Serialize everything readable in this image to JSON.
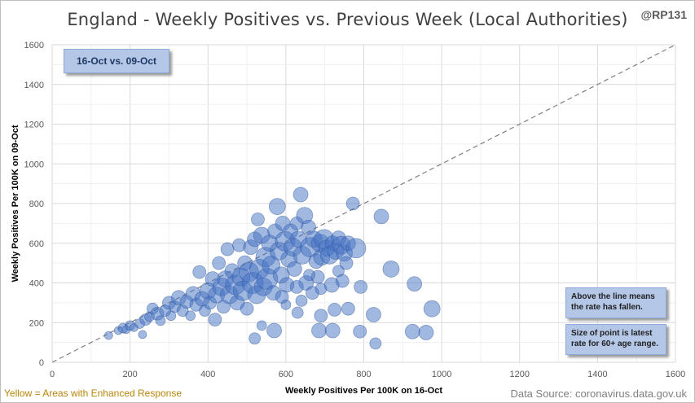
{
  "title": "England - Weekly Positives vs. Previous Week (Local Authorities)",
  "handle": "@RP131",
  "date_label": "16-Oct vs. 09-Oct",
  "notes": {
    "above_line": "Above the line means the rate has fallen.",
    "point_size": "Size of point is latest rate for 60+ age range."
  },
  "footer": {
    "left": "Yellow = Areas with Enhanced Response",
    "right": "Data Source: coronavirus.data.gov.uk"
  },
  "colors": {
    "point": "#4472c4",
    "point_dark": "#2f5597",
    "gridline": "#d9d9d9",
    "reference_line": "#808080"
  },
  "chart_data": {
    "type": "scatter",
    "title": "England - Weekly Positives vs. Previous Week (Local Authorities)",
    "xlabel": "Weekly Positives Per 100K on 16-Oct",
    "ylabel": "Weekly Positives Per 100K on 09-Oct",
    "xlim": [
      0,
      1600
    ],
    "ylim": [
      0,
      1600
    ],
    "x_ticks": [
      0,
      200,
      400,
      600,
      800,
      1000,
      1200,
      1400,
      1600
    ],
    "y_ticks": [
      0,
      200,
      400,
      600,
      800,
      1000,
      1200,
      1400,
      1600
    ],
    "grid": true,
    "reference_line": "y = x",
    "size_meaning": "latest rate for 60+ age range",
    "points": [
      {
        "x": 145,
        "y": 135,
        "s": 5
      },
      {
        "x": 170,
        "y": 160,
        "s": 5
      },
      {
        "x": 182,
        "y": 172,
        "s": 6
      },
      {
        "x": 190,
        "y": 165,
        "s": 5
      },
      {
        "x": 200,
        "y": 185,
        "s": 6
      },
      {
        "x": 210,
        "y": 175,
        "s": 5
      },
      {
        "x": 225,
        "y": 195,
        "s": 6
      },
      {
        "x": 232,
        "y": 140,
        "s": 5
      },
      {
        "x": 240,
        "y": 215,
        "s": 7
      },
      {
        "x": 250,
        "y": 230,
        "s": 6
      },
      {
        "x": 258,
        "y": 270,
        "s": 7
      },
      {
        "x": 270,
        "y": 245,
        "s": 8
      },
      {
        "x": 278,
        "y": 210,
        "s": 6
      },
      {
        "x": 290,
        "y": 260,
        "s": 7
      },
      {
        "x": 300,
        "y": 300,
        "s": 8
      },
      {
        "x": 305,
        "y": 235,
        "s": 6
      },
      {
        "x": 315,
        "y": 280,
        "s": 7
      },
      {
        "x": 325,
        "y": 325,
        "s": 9
      },
      {
        "x": 335,
        "y": 260,
        "s": 7
      },
      {
        "x": 345,
        "y": 305,
        "s": 8
      },
      {
        "x": 355,
        "y": 235,
        "s": 6
      },
      {
        "x": 362,
        "y": 345,
        "s": 9
      },
      {
        "x": 370,
        "y": 290,
        "s": 8
      },
      {
        "x": 378,
        "y": 455,
        "s": 8
      },
      {
        "x": 385,
        "y": 320,
        "s": 9
      },
      {
        "x": 392,
        "y": 260,
        "s": 7
      },
      {
        "x": 400,
        "y": 360,
        "s": 10
      },
      {
        "x": 405,
        "y": 300,
        "s": 8
      },
      {
        "x": 412,
        "y": 420,
        "s": 9
      },
      {
        "x": 418,
        "y": 215,
        "s": 8
      },
      {
        "x": 422,
        "y": 340,
        "s": 10
      },
      {
        "x": 428,
        "y": 500,
        "s": 8
      },
      {
        "x": 435,
        "y": 380,
        "s": 11
      },
      {
        "x": 440,
        "y": 280,
        "s": 8
      },
      {
        "x": 445,
        "y": 420,
        "s": 10
      },
      {
        "x": 450,
        "y": 570,
        "s": 8
      },
      {
        "x": 455,
        "y": 340,
        "s": 11
      },
      {
        "x": 462,
        "y": 460,
        "s": 9
      },
      {
        "x": 470,
        "y": 390,
        "s": 12
      },
      {
        "x": 475,
        "y": 300,
        "s": 9
      },
      {
        "x": 480,
        "y": 590,
        "s": 8
      },
      {
        "x": 485,
        "y": 430,
        "s": 11
      },
      {
        "x": 490,
        "y": 360,
        "s": 12
      },
      {
        "x": 495,
        "y": 500,
        "s": 9
      },
      {
        "x": 500,
        "y": 270,
        "s": 8
      },
      {
        "x": 505,
        "y": 455,
        "s": 12
      },
      {
        "x": 510,
        "y": 580,
        "s": 9
      },
      {
        "x": 515,
        "y": 400,
        "s": 13
      },
      {
        "x": 520,
        "y": 620,
        "s": 9
      },
      {
        "x": 525,
        "y": 340,
        "s": 11
      },
      {
        "x": 528,
        "y": 720,
        "s": 8
      },
      {
        "x": 532,
        "y": 470,
        "s": 12
      },
      {
        "x": 538,
        "y": 640,
        "s": 10
      },
      {
        "x": 542,
        "y": 380,
        "s": 11
      },
      {
        "x": 548,
        "y": 530,
        "s": 12
      },
      {
        "x": 552,
        "y": 420,
        "s": 13
      },
      {
        "x": 558,
        "y": 600,
        "s": 10
      },
      {
        "x": 562,
        "y": 490,
        "s": 11
      },
      {
        "x": 568,
        "y": 350,
        "s": 9
      },
      {
        "x": 572,
        "y": 660,
        "s": 9
      },
      {
        "x": 578,
        "y": 785,
        "s": 10
      },
      {
        "x": 582,
        "y": 560,
        "s": 11
      },
      {
        "x": 588,
        "y": 440,
        "s": 10
      },
      {
        "x": 592,
        "y": 700,
        "s": 9
      },
      {
        "x": 598,
        "y": 610,
        "s": 12
      },
      {
        "x": 602,
        "y": 390,
        "s": 9
      },
      {
        "x": 608,
        "y": 520,
        "s": 10
      },
      {
        "x": 612,
        "y": 660,
        "s": 9
      },
      {
        "x": 618,
        "y": 580,
        "s": 11
      },
      {
        "x": 622,
        "y": 470,
        "s": 9
      },
      {
        "x": 628,
        "y": 700,
        "s": 8
      },
      {
        "x": 632,
        "y": 620,
        "s": 10
      },
      {
        "x": 638,
        "y": 845,
        "s": 9
      },
      {
        "x": 642,
        "y": 540,
        "s": 11
      },
      {
        "x": 648,
        "y": 740,
        "s": 10
      },
      {
        "x": 652,
        "y": 400,
        "s": 9
      },
      {
        "x": 658,
        "y": 680,
        "s": 9
      },
      {
        "x": 662,
        "y": 580,
        "s": 12
      },
      {
        "x": 668,
        "y": 350,
        "s": 8
      },
      {
        "x": 672,
        "y": 620,
        "s": 10
      },
      {
        "x": 678,
        "y": 510,
        "s": 9
      },
      {
        "x": 682,
        "y": 430,
        "s": 8
      },
      {
        "x": 688,
        "y": 600,
        "s": 11
      },
      {
        "x": 692,
        "y": 530,
        "s": 10
      },
      {
        "x": 698,
        "y": 620,
        "s": 12
      },
      {
        "x": 705,
        "y": 575,
        "s": 10
      },
      {
        "x": 712,
        "y": 540,
        "s": 11
      },
      {
        "x": 720,
        "y": 600,
        "s": 9
      },
      {
        "x": 728,
        "y": 560,
        "s": 10
      },
      {
        "x": 735,
        "y": 625,
        "s": 9
      },
      {
        "x": 742,
        "y": 590,
        "s": 11
      },
      {
        "x": 750,
        "y": 550,
        "s": 10
      },
      {
        "x": 760,
        "y": 600,
        "s": 9
      },
      {
        "x": 772,
        "y": 800,
        "s": 8
      },
      {
        "x": 780,
        "y": 575,
        "s": 12
      },
      {
        "x": 792,
        "y": 380,
        "s": 8
      },
      {
        "x": 845,
        "y": 735,
        "s": 9
      },
      {
        "x": 870,
        "y": 470,
        "s": 10
      },
      {
        "x": 930,
        "y": 395,
        "s": 9
      },
      {
        "x": 590,
        "y": 330,
        "s": 8
      },
      {
        "x": 600,
        "y": 290,
        "s": 6
      },
      {
        "x": 628,
        "y": 380,
        "s": 8
      },
      {
        "x": 640,
        "y": 310,
        "s": 7
      },
      {
        "x": 660,
        "y": 440,
        "s": 7
      },
      {
        "x": 690,
        "y": 370,
        "s": 7
      },
      {
        "x": 718,
        "y": 390,
        "s": 9
      },
      {
        "x": 735,
        "y": 460,
        "s": 7
      },
      {
        "x": 745,
        "y": 410,
        "s": 8
      },
      {
        "x": 755,
        "y": 500,
        "s": 8
      },
      {
        "x": 570,
        "y": 160,
        "s": 9
      },
      {
        "x": 538,
        "y": 185,
        "s": 6
      },
      {
        "x": 520,
        "y": 120,
        "s": 7
      },
      {
        "x": 630,
        "y": 250,
        "s": 7
      },
      {
        "x": 690,
        "y": 235,
        "s": 8
      },
      {
        "x": 725,
        "y": 265,
        "s": 8
      },
      {
        "x": 760,
        "y": 270,
        "s": 8
      },
      {
        "x": 685,
        "y": 160,
        "s": 9
      },
      {
        "x": 720,
        "y": 160,
        "s": 9
      },
      {
        "x": 790,
        "y": 155,
        "s": 8
      },
      {
        "x": 825,
        "y": 240,
        "s": 9
      },
      {
        "x": 830,
        "y": 95,
        "s": 7
      },
      {
        "x": 925,
        "y": 155,
        "s": 9
      },
      {
        "x": 960,
        "y": 150,
        "s": 9
      },
      {
        "x": 975,
        "y": 270,
        "s": 10
      }
    ]
  }
}
